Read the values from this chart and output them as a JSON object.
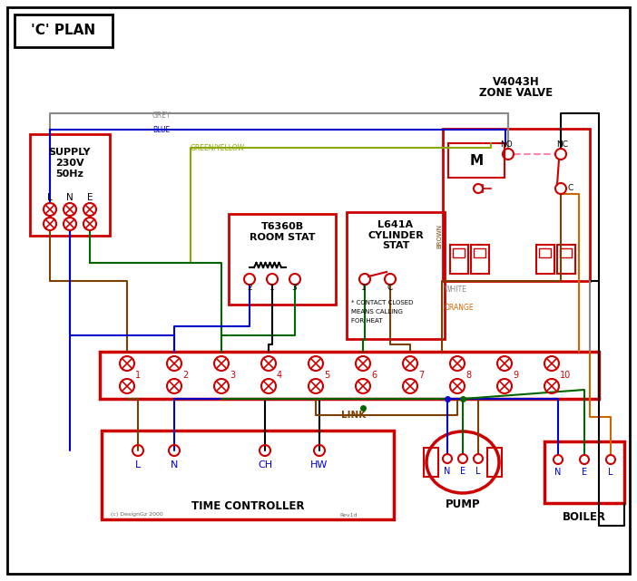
{
  "bg": "#ffffff",
  "black": "#000000",
  "red": "#cc0000",
  "blue": "#0000cc",
  "green": "#006600",
  "brown": "#7b3f00",
  "grey": "#888888",
  "orange": "#cc6600",
  "pink": "#ff88aa",
  "gy": "#88aa00",
  "white_w": "#aaaaaa",
  "title": "'C' PLAN",
  "supply_txt": "SUPPLY\n230V\n50Hz",
  "zone_txt1": "V4043H",
  "zone_txt2": "ZONE VALVE",
  "room_txt1": "T6360B",
  "room_txt2": "ROOM STAT",
  "cyl_txt1": "L641A",
  "cyl_txt2": "CYLINDER",
  "cyl_txt3": "STAT",
  "tc_txt": "TIME CONTROLLER",
  "pump_txt": "PUMP",
  "boiler_txt": "BOILER",
  "link_txt": "LINK",
  "contact_txt": "* CONTACT CLOSED\nMEANS CALLING\nFOR HEAT"
}
